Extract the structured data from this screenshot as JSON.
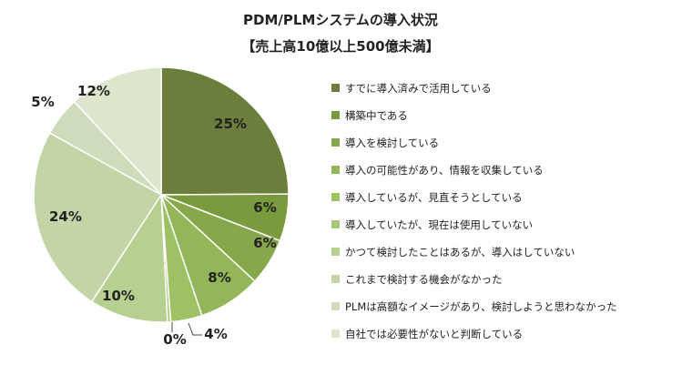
{
  "chart_data": {
    "type": "pie",
    "title": "PDM/PLMシステムの導入状況",
    "subtitle": "【売上高10億以上500億未満】",
    "legend_position": "right",
    "slices": [
      {
        "label": "すでに導入済みで活用している",
        "value": 25,
        "value_label": "25%",
        "color": "#6b7e3c"
      },
      {
        "label": "構築中である",
        "value": 6,
        "value_label": "6%",
        "color": "#7a9a3e"
      },
      {
        "label": "導入を検討している",
        "value": 6,
        "value_label": "6%",
        "color": "#86a84a"
      },
      {
        "label": "導入の可能性があり、情報を収集している",
        "value": 8,
        "value_label": "8%",
        "color": "#93b658"
      },
      {
        "label": "導入しているが、見直そうとしている",
        "value": 4,
        "value_label": "4%",
        "color": "#9ec164"
      },
      {
        "label": "導入していたが、現在は使用していない",
        "value": 0.4,
        "value_label": "0%",
        "color": "#a9c777"
      },
      {
        "label": "かつて検討したことはあるが、導入はしていない",
        "value": 10,
        "value_label": "10%",
        "color": "#b7d091"
      },
      {
        "label": "これまで検討する機会がなかった",
        "value": 24,
        "value_label": "24%",
        "color": "#c3d4a6"
      },
      {
        "label": "PLMは高額なイメージがあり、検討しようと思わなかった",
        "value": 5,
        "value_label": "5%",
        "color": "#cfdcbb"
      },
      {
        "label": "自社では必要性がないと判断している",
        "value": 12,
        "value_label": "12%",
        "color": "#dde6cd"
      }
    ]
  }
}
